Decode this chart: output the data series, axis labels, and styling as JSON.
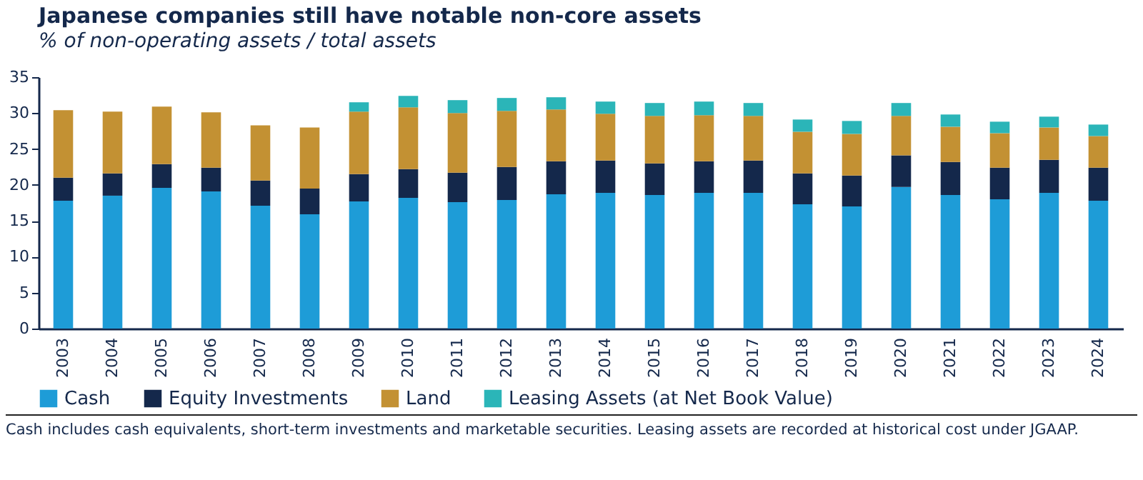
{
  "chart_data": {
    "type": "bar",
    "stacked": true,
    "title": "Japanese companies still have notable non-core assets",
    "subtitle": "% of non-operating assets / total assets",
    "categories": [
      "2003",
      "2004",
      "2005",
      "2006",
      "2007",
      "2008",
      "2009",
      "2010",
      "2011",
      "2012",
      "2013",
      "2014",
      "2015",
      "2016",
      "2017",
      "2018",
      "2019",
      "2020",
      "2021",
      "2022",
      "2023",
      "2024"
    ],
    "series": [
      {
        "name": "Cash",
        "color": "#1e9cd7",
        "values": [
          17.8,
          18.5,
          19.6,
          19.1,
          17.1,
          15.9,
          17.7,
          18.2,
          17.6,
          17.9,
          18.7,
          18.9,
          18.6,
          18.9,
          18.9,
          17.3,
          17.0,
          19.7,
          18.6,
          18.0,
          18.9,
          17.8
        ]
      },
      {
        "name": "Equity Investments",
        "color": "#14284b",
        "values": [
          3.2,
          3.1,
          3.3,
          3.3,
          3.5,
          3.6,
          3.8,
          4.0,
          4.1,
          4.6,
          4.6,
          4.5,
          4.4,
          4.4,
          4.5,
          4.3,
          4.3,
          4.4,
          4.6,
          4.4,
          4.6,
          4.6
        ]
      },
      {
        "name": "Land",
        "color": "#c39133",
        "values": [
          9.4,
          8.6,
          8.0,
          7.7,
          7.7,
          8.5,
          8.7,
          8.6,
          8.3,
          7.8,
          7.2,
          6.5,
          6.6,
          6.4,
          6.2,
          5.8,
          5.8,
          5.5,
          4.9,
          4.8,
          4.5,
          4.4
        ]
      },
      {
        "name": "Leasing Assets (at Net Book Value)",
        "color": "#2bb5b8",
        "values": [
          null,
          null,
          null,
          null,
          null,
          null,
          1.3,
          1.6,
          1.8,
          1.8,
          1.7,
          1.7,
          1.8,
          1.9,
          1.8,
          1.7,
          1.8,
          1.8,
          1.7,
          1.6,
          1.5,
          1.6
        ]
      }
    ],
    "ylim": [
      0,
      35
    ],
    "yticks": [
      0,
      5,
      10,
      15,
      20,
      25,
      30,
      35
    ],
    "grid": false,
    "legend": "bottom",
    "annotations": [
      "Cash includes cash equivalents, short-term investments and marketable securities.  Leasing assets are recorded at historical cost under JGAAP."
    ]
  }
}
